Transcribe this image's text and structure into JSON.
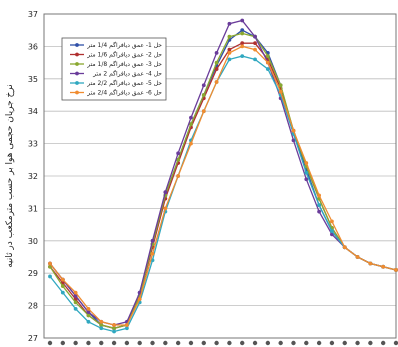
{
  "chart_data": {
    "type": "line",
    "title": "",
    "xlabel": "",
    "ylabel": "نرخ جريان حجمی هوا بر حسب مترمکعب در ثانيه",
    "ylim": [
      27,
      37
    ],
    "yticks": [
      "27",
      "28",
      "29",
      "30",
      "31",
      "32",
      "33",
      "34",
      "35",
      "36",
      "37"
    ],
    "grid": true,
    "legend_position": "top-left",
    "x": [
      1,
      2,
      3,
      4,
      5,
      6,
      7,
      8,
      9,
      10,
      11,
      12,
      13,
      14,
      15,
      16,
      17,
      18,
      19,
      20,
      21,
      22,
      23,
      24,
      25,
      26,
      27,
      28
    ],
    "series": [
      {
        "name": "حل 1- عمق دیافراگم 1/4 متر",
        "color": "#3050a8",
        "values": [
          29.3,
          28.8,
          28.3,
          27.8,
          27.4,
          27.3,
          27.4,
          28.4,
          29.9,
          31.4,
          32.5,
          33.6,
          34.5,
          35.4,
          36.2,
          36.5,
          36.3,
          35.8,
          34.8,
          33.3,
          32.2,
          31.1,
          30.3,
          29.8,
          29.5,
          29.3,
          29.2,
          29.1
        ]
      },
      {
        "name": "حل 2- عمق دیافراگم 1/6 متر",
        "color": "#b03030",
        "values": [
          29.2,
          28.7,
          28.2,
          27.7,
          27.4,
          27.3,
          27.4,
          28.3,
          29.8,
          31.3,
          32.4,
          33.5,
          34.4,
          35.3,
          35.9,
          36.1,
          36.1,
          35.6,
          34.7,
          33.4,
          32.3,
          31.3,
          30.4,
          29.8,
          29.5,
          29.3,
          29.2,
          29.1
        ]
      },
      {
        "name": "حل 3- عمق دیافراگم 1/8 متر",
        "color": "#8aa830",
        "values": [
          29.2,
          28.6,
          28.1,
          27.7,
          27.4,
          27.3,
          27.4,
          28.3,
          29.9,
          31.4,
          32.5,
          33.6,
          34.5,
          35.5,
          36.3,
          36.4,
          36.3,
          35.7,
          34.8,
          33.4,
          32.3,
          31.3,
          30.4,
          29.8,
          29.5,
          29.3,
          29.2,
          29.1
        ]
      },
      {
        "name": "حل 4- عمق دیافراگم 2 متر",
        "color": "#6a3c9a",
        "values": [
          29.3,
          28.8,
          28.3,
          27.8,
          27.5,
          27.4,
          27.5,
          28.4,
          30.0,
          31.5,
          32.7,
          33.8,
          34.8,
          35.8,
          36.7,
          36.8,
          36.3,
          35.5,
          34.4,
          33.1,
          31.9,
          30.9,
          30.2,
          29.8,
          29.5,
          29.3,
          29.2,
          29.1
        ]
      },
      {
        "name": "حل 5- عمق دیافراگم 2/2 متر",
        "color": "#30a8c0",
        "values": [
          28.9,
          28.4,
          27.9,
          27.5,
          27.3,
          27.2,
          27.3,
          28.1,
          29.4,
          30.9,
          32.0,
          33.1,
          34.0,
          34.9,
          35.6,
          35.7,
          35.6,
          35.3,
          34.5,
          33.3,
          32.1,
          31.1,
          30.3,
          29.8,
          29.5,
          29.3,
          29.2,
          29.1
        ]
      },
      {
        "name": "حل 6- عمق دیافراگم 2/4 متر",
        "color": "#f08c30",
        "values": [
          29.3,
          28.8,
          28.4,
          27.9,
          27.5,
          27.4,
          27.4,
          28.2,
          29.6,
          31.0,
          32.0,
          33.0,
          34.0,
          34.9,
          35.8,
          36.0,
          35.9,
          35.5,
          34.6,
          33.4,
          32.4,
          31.4,
          30.6,
          29.8,
          29.5,
          29.3,
          29.2,
          29.1
        ]
      }
    ]
  }
}
